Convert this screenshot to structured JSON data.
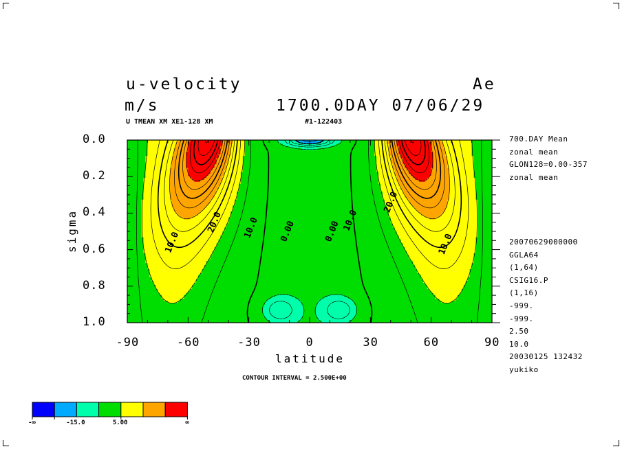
{
  "header": {
    "variable": "u-velocity",
    "units": "m/s",
    "experiment": "Ae",
    "time": "1700.0DAY 07/06/29",
    "subtitle": "U TMEAN XM XE1-128 XM",
    "run_id": "#1-122403",
    "contour_interval": "CONTOUR INTERVAL = 2.500E+00"
  },
  "info_panel": {
    "top": [
      "700.DAY Mean",
      "zonal mean",
      "GLON128=0.00-357",
      "zonal mean"
    ],
    "bottom": [
      "20070629000000",
      "GGLA64",
      "(1,64)",
      "CSIG16.P",
      "(1,16)",
      "-999.",
      "-999.",
      "2.50",
      "10.0",
      "20030125 132432",
      "yukiko"
    ]
  },
  "colorbar": {
    "colors": [
      "#0000ff",
      "#00aaff",
      "#00ffaa",
      "#00dd00",
      "#ffff00",
      "#ffa500",
      "#ff0000"
    ],
    "labels": [
      "-∞",
      "-15.0",
      "5.00",
      "∞"
    ]
  },
  "chart_data": {
    "type": "contour",
    "title": "u-velocity",
    "xlabel": "latitude",
    "ylabel": "sigma",
    "xlim": [
      -90,
      90
    ],
    "ylim": [
      1.0,
      0.0
    ],
    "x_ticks": [
      -90,
      -60,
      -30,
      0,
      30,
      60,
      90
    ],
    "x_tick_labels": [
      "-90",
      "-60",
      "-30",
      "0",
      "30",
      "60",
      "90"
    ],
    "y_ticks": [
      0.0,
      0.2,
      0.4,
      0.6,
      0.8,
      1.0
    ],
    "y_tick_labels": [
      "0.0",
      "0.2",
      "0.4",
      "0.6",
      "0.8",
      "1.0"
    ],
    "contour_interval": 2.5,
    "contour_labels": [
      {
        "text": "20.0",
        "lat": -47,
        "sigma": 0.45
      },
      {
        "text": "10.0",
        "lat": -68,
        "sigma": 0.56
      },
      {
        "text": "10.0",
        "lat": -29,
        "sigma": 0.48
      },
      {
        "text": "0.00",
        "lat": -11,
        "sigma": 0.5
      },
      {
        "text": "0.00",
        "lat": 11,
        "sigma": 0.5
      },
      {
        "text": "10.0",
        "lat": 20,
        "sigma": 0.44
      },
      {
        "text": "20.0",
        "lat": 40,
        "sigma": 0.34
      },
      {
        "text": "10.0",
        "lat": 67,
        "sigma": 0.57
      }
    ],
    "jet_maxima": [
      {
        "lat": -50,
        "sigma": 0.12
      },
      {
        "lat": 50,
        "sigma": 0.12
      }
    ]
  }
}
